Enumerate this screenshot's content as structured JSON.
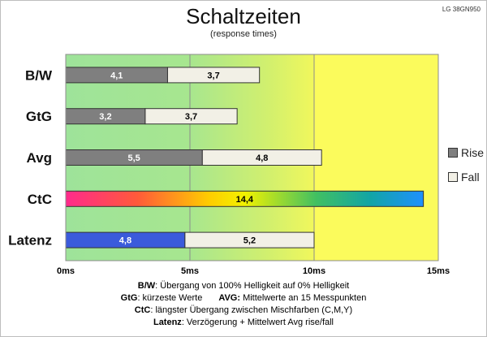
{
  "header": {
    "title": "Schaltzeiten",
    "subtitle": "(response times)",
    "model": "LG 38GN950"
  },
  "legend": {
    "rise_label": "Rise",
    "fall_label": "Fall",
    "rise_color": "#7f7f7f",
    "fall_color": "#f2f0e6"
  },
  "notes": {
    "bw_key": "B/W",
    "bw_text": ":  Übergang von 100% Helligkeit auf 0% Helligkeit",
    "gtg_key": "GtG",
    "gtg_text": ": kürzeste  Werte",
    "avg_key": "AVG:",
    "avg_text": " Mittelwerte  an 15 Messpunkten",
    "ctc_key": "CtC",
    "ctc_text": ": längster Übergang  zwischen Mischfarben  (C,M,Y)",
    "lat_key": "Latenz",
    "lat_text": ": Verzögerung  + Mittelwert  Avg rise/fall"
  },
  "chart_data": {
    "type": "bar",
    "orientation": "horizontal",
    "stacked": true,
    "categories": [
      "B/W",
      "GtG",
      "Avg",
      "CtC",
      "Latenz"
    ],
    "series": [
      {
        "name": "Rise",
        "values": [
          4.1,
          3.2,
          5.5,
          null,
          4.8
        ],
        "labels": [
          "4,1",
          "3,2",
          "5,5",
          "",
          "4,8"
        ]
      },
      {
        "name": "Fall",
        "values": [
          3.7,
          3.7,
          4.8,
          null,
          5.2
        ],
        "labels": [
          "3,7",
          "3,7",
          "4,8",
          "",
          "5,2"
        ]
      }
    ],
    "single_bars": [
      {
        "category": "CtC",
        "value": 14.4,
        "label": "14,4",
        "fill": "rainbow gradient"
      }
    ],
    "special_colors": {
      "Latenz_rise": "#3b5bdb"
    },
    "xlim": [
      0,
      15
    ],
    "xticks": [
      "0ms",
      "5ms",
      "10ms",
      "15ms"
    ],
    "xtick_values": [
      0,
      5,
      10,
      15
    ],
    "background": "gradient green to yellow",
    "grid": true
  }
}
